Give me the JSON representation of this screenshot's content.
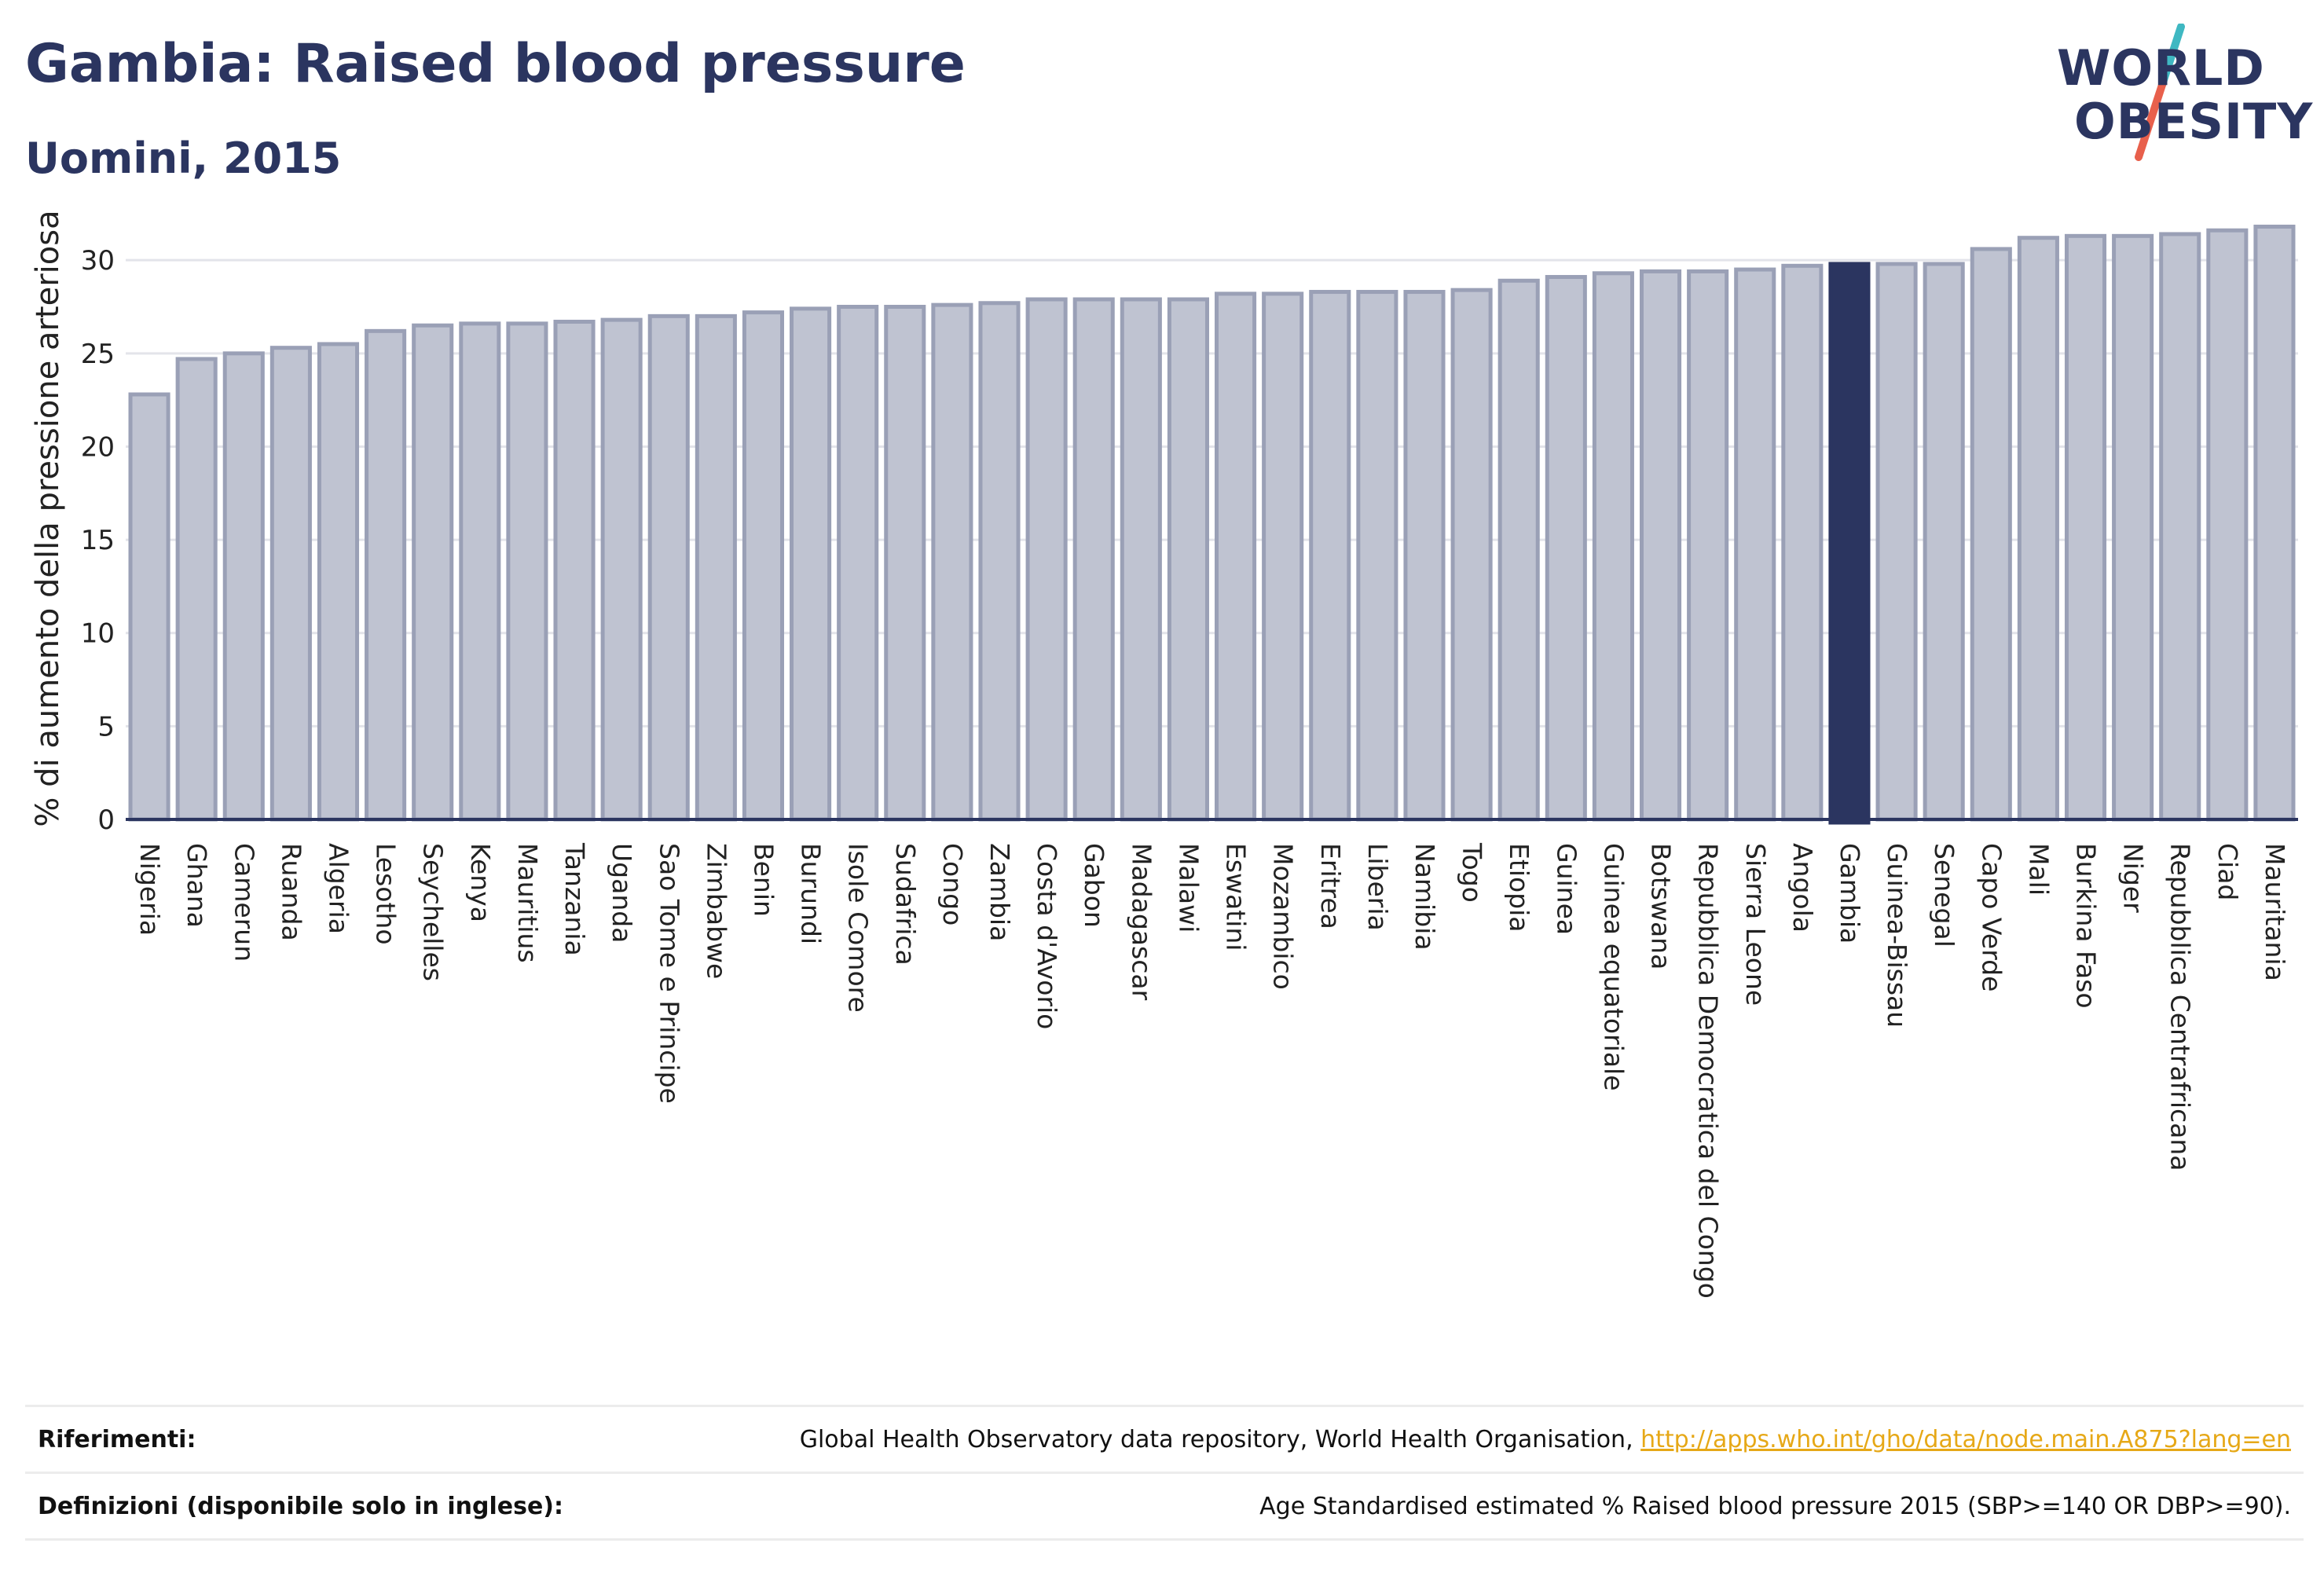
{
  "header": {
    "title": "Gambia: Raised blood pressure",
    "subtitle": "Uomini, 2015"
  },
  "logo": {
    "line1": "WORLD",
    "line2": "OBESITY",
    "slash_colors": [
      "#3fb8c2",
      "#e8604c"
    ]
  },
  "colors": {
    "bar": "#bfc3d1",
    "bar_border": "#9aa0b6",
    "highlight": "#2b3560",
    "gridline": "#e3e4ea",
    "axis": "#2b3560"
  },
  "chart_data": {
    "type": "bar",
    "title": "Gambia: Raised blood pressure",
    "subtitle": "Uomini, 2015",
    "xlabel": "",
    "ylabel": "% di aumento della pressione arteriosa",
    "ylim": [
      0,
      33
    ],
    "yticks": [
      0,
      5,
      10,
      15,
      20,
      25,
      30
    ],
    "grid": true,
    "highlight": "Gambia",
    "categories": [
      "Nigeria",
      "Ghana",
      "Camerun",
      "Ruanda",
      "Algeria",
      "Lesotho",
      "Seychelles",
      "Kenya",
      "Mauritius",
      "Tanzania",
      "Uganda",
      "Sao Tome e Principe",
      "Zimbabwe",
      "Benin",
      "Burundi",
      "Isole Comore",
      "Sudafrica",
      "Congo",
      "Zambia",
      "Costa d'Avorio",
      "Gabon",
      "Madagascar",
      "Malawi",
      "Eswatini",
      "Mozambico",
      "Eritrea",
      "Liberia",
      "Namibia",
      "Togo",
      "Etiopia",
      "Guinea",
      "Guinea equatoriale",
      "Botswana",
      "Repubblica Democratica del Congo",
      "Sierra Leone",
      "Angola",
      "Gambia",
      "Guinea-Bissau",
      "Senegal",
      "Capo Verde",
      "Mali",
      "Burkina Faso",
      "Niger",
      "Repubblica Centrafricana",
      "Ciad",
      "Mauritania"
    ],
    "values": [
      22.8,
      24.7,
      25.0,
      25.3,
      25.5,
      26.2,
      26.5,
      26.6,
      26.6,
      26.7,
      26.8,
      27.0,
      27.0,
      27.2,
      27.4,
      27.5,
      27.5,
      27.6,
      27.7,
      27.9,
      27.9,
      27.9,
      27.9,
      28.2,
      28.2,
      28.3,
      28.3,
      28.3,
      28.4,
      28.9,
      29.1,
      29.3,
      29.4,
      29.4,
      29.5,
      29.7,
      29.8,
      29.8,
      29.8,
      30.6,
      31.2,
      31.3,
      31.3,
      31.4,
      31.6,
      31.8
    ]
  },
  "footer": {
    "references_label": "Riferimenti:",
    "references_text": "Global Health Observatory data repository, World Health Organisation, ",
    "references_link": "http://apps.who.int/gho/data/node.main.A875?lang=en",
    "definitions_label": "Definizioni (disponibile solo in inglese):",
    "definitions_text": "Age Standardised estimated % Raised blood pressure 2015 (SBP>=140 OR DBP>=90)."
  }
}
